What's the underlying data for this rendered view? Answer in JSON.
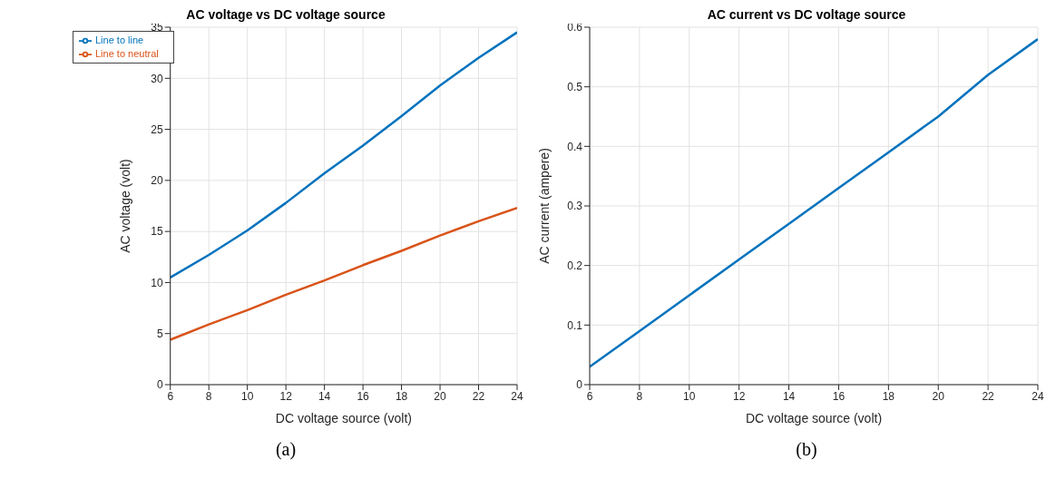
{
  "chart_data": [
    {
      "type": "line",
      "title": "AC voltage vs DC voltage source",
      "xlabel": "DC voltage source (volt)",
      "ylabel": "AC voltage  (volt)",
      "x": [
        6,
        8,
        10,
        12,
        14,
        16,
        18,
        20,
        22,
        24
      ],
      "xlim": [
        6,
        24
      ],
      "xticks": [
        6,
        8,
        10,
        12,
        14,
        16,
        18,
        20,
        22,
        24
      ],
      "ylim": [
        0,
        35
      ],
      "yticks": [
        0,
        5,
        10,
        15,
        20,
        25,
        30,
        35
      ],
      "grid": true,
      "legend": "top left",
      "annotations": [
        "(a)"
      ],
      "series": [
        {
          "name": "Line to line",
          "color": "#0072bd",
          "values": [
            10.5,
            12.7,
            15.1,
            17.8,
            20.7,
            23.4,
            26.3,
            29.3,
            32,
            34.5
          ]
        },
        {
          "name": "Line to neutral",
          "color": "#d95319",
          "values": [
            4.4,
            5.9,
            7.3,
            8.8,
            10.2,
            11.7,
            13.1,
            14.6,
            16,
            17.3
          ]
        }
      ]
    },
    {
      "type": "line",
      "title": "AC current vs DC voltage source",
      "xlabel": "DC voltage source (volt)",
      "ylabel": "AC current  (ampere)",
      "x": [
        6,
        8,
        10,
        12,
        14,
        16,
        18,
        20,
        22,
        24
      ],
      "xlim": [
        6,
        24
      ],
      "xticks": [
        6,
        8,
        10,
        12,
        14,
        16,
        18,
        20,
        22,
        24
      ],
      "ylim": [
        0,
        0.6
      ],
      "yticks": [
        0,
        0.1,
        0.2,
        0.3,
        0.4,
        0.5,
        0.6
      ],
      "grid": true,
      "annotations": [
        "(b)"
      ],
      "series": [
        {
          "color": "#0072bd",
          "values": [
            0.03,
            0.09,
            0.15,
            0.21,
            0.27,
            0.33,
            0.39,
            0.45,
            0.52,
            0.58
          ]
        }
      ]
    }
  ]
}
